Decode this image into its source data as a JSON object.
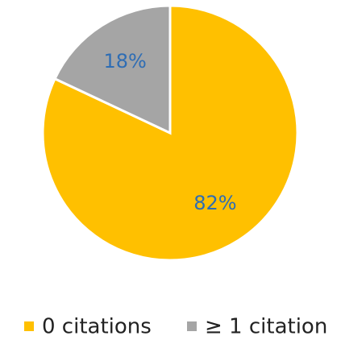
{
  "chart_data": {
    "type": "pie",
    "categories": [
      "0 citations",
      "≥ 1 citation"
    ],
    "values": [
      82,
      18
    ],
    "value_labels": [
      "82%",
      "18%"
    ],
    "colors": [
      "#FFC000",
      "#A5A5A5"
    ],
    "legend": "bottom"
  }
}
